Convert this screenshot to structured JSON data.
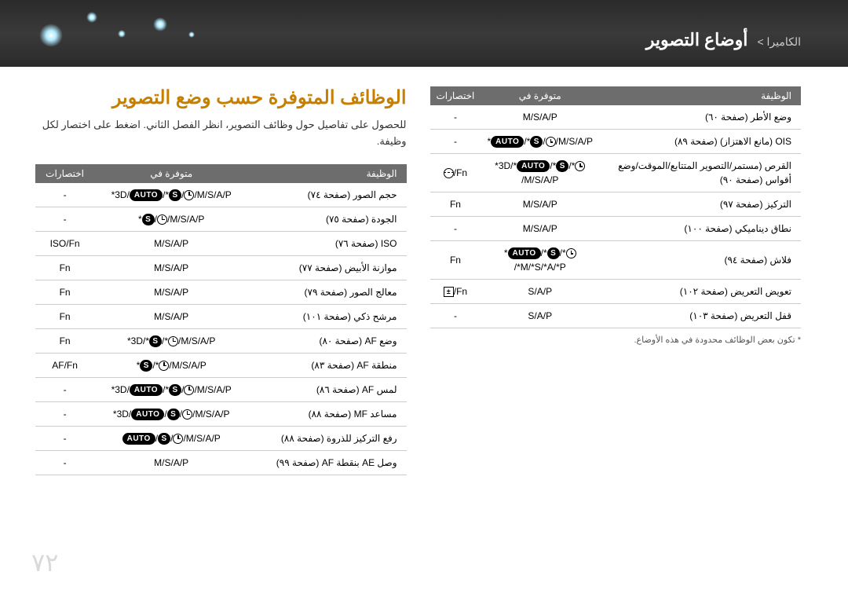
{
  "header": {
    "breadcrumb_small": "الكاميرا >",
    "breadcrumb_main": "أوضاع التصوير"
  },
  "section": {
    "title": "الوظائف المتوفرة حسب وضع التصوير",
    "intro": "للحصول على تفاصيل حول وظائف التصوير، انظر الفصل الثاني. اضغط على اختصار لكل وظيفة."
  },
  "columns": {
    "function": "الوظيفة",
    "available": "متوفرة في",
    "shortcut": "اختصارات"
  },
  "right_table": [
    {
      "func": "حجم الصور (صفحة ٧٤)",
      "avail": "*3D/{AUTO}/*{S}/{T}/M/S/A/P",
      "shortcut": "-"
    },
    {
      "func": "الجودة (صفحة ٧٥)",
      "avail": "*{S}/{T}/M/S/A/P",
      "shortcut": "-"
    },
    {
      "func": "ISO (صفحة ٧٦)",
      "avail": "M/S/A/P",
      "shortcut": "ISO/Fn"
    },
    {
      "func": "موازنة الأبيض (صفحة ٧٧)",
      "avail": "M/S/A/P",
      "shortcut": "Fn"
    },
    {
      "func": "معالج الصور (صفحة ٧٩)",
      "avail": "M/S/A/P",
      "shortcut": "Fn"
    },
    {
      "func": "مرشح ذكي (صفحة ١٠١)",
      "avail": "M/S/A/P",
      "shortcut": "Fn"
    },
    {
      "func": "وضع AF (صفحة ٨٠)",
      "avail": "*3D/*{S}/*{T}/M/S/A/P",
      "shortcut": "Fn"
    },
    {
      "func": "منطقة AF (صفحة ٨٣)",
      "avail": "*{S}/*{T}/M/S/A/P",
      "shortcut": "AF/Fn"
    },
    {
      "func": "لمس AF (صفحة ٨٦)",
      "avail": "*3D/{AUTO}/*{S}/{T}/M/S/A/P",
      "shortcut": "-"
    },
    {
      "func": "مساعد MF (صفحة ٨٨)",
      "avail": "*3D/{AUTO}/{S}/{T}/M/S/A/P",
      "shortcut": "-"
    },
    {
      "func": "رفع التركيز للذروة (صفحة ٨٨)",
      "avail": "{AUTO}/{S}/{T}/M/S/A/P",
      "shortcut": "-"
    },
    {
      "func": "وصل AE بنقطة AF (صفحة ٩٩)",
      "avail": "M/S/A/P",
      "shortcut": "-"
    }
  ],
  "left_table": [
    {
      "func": "وضع الأطر (صفحة ٦٠)",
      "avail": "M/S/A/P",
      "shortcut": "-"
    },
    {
      "func": "OIS (مانع الاهتزاز) (صفحة ٨٩)",
      "avail": "*{AUTO}/*{S}/{T}/M/S/A/P",
      "shortcut": "-"
    },
    {
      "func": "القرص (مستمر/التصوير المتتابع/الموقت/وضع أقواس (صفحة ٩٠)",
      "avail": "*3D/*{AUTO}/*{S}/*{T}/M/S/A/P",
      "shortcut": "{D}/Fn"
    },
    {
      "func": "التركيز (صفحة ٩٧)",
      "avail": "M/S/A/P",
      "shortcut": "Fn"
    },
    {
      "func": "نطاق ديناميكي (صفحة ١٠٠)",
      "avail": "M/S/A/P",
      "shortcut": "-"
    },
    {
      "func": "فلاش (صفحة ٩٤)",
      "avail": "*{AUTO}/*{S}/*{T}/*M/*S/*A/*P",
      "shortcut": "Fn"
    },
    {
      "func": "تعويض التعريض (صفحة ١٠٢)",
      "avail": "S/A/P",
      "shortcut": "{E}/Fn"
    },
    {
      "func": "قفل التعريض (صفحة ١٠٣)",
      "avail": "S/A/P",
      "shortcut": "-"
    }
  ],
  "footnote": "* تكون بعض الوظائف محدودة في هذه الأوضاع.",
  "page_number": "٧٢",
  "colors": {
    "accent": "#c77f00",
    "header_bg": "#2f2f2f",
    "th_bg": "#6d6d6d",
    "border": "#cccccc",
    "pagenum": "#d9d9d9"
  }
}
